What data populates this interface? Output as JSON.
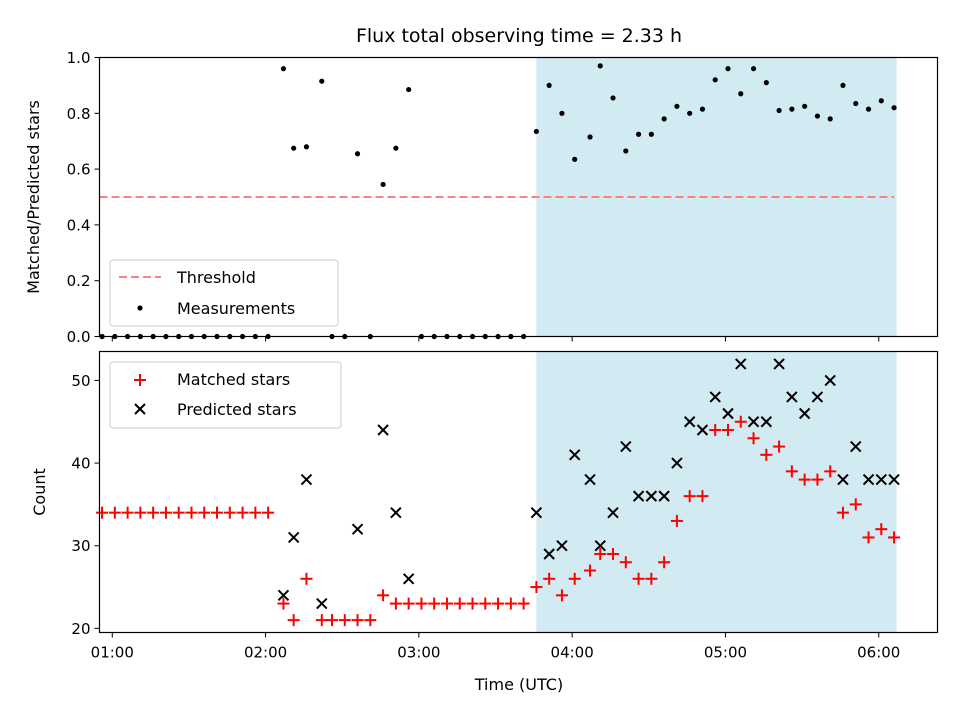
{
  "chart_data": {
    "type": "scatter",
    "title": "Flux total observing time = 2.33 h",
    "xlabel": "Time (UTC)",
    "x_unit": "time of day (UTC)",
    "xlim": [
      "00:55",
      "06:23"
    ],
    "xticks": [
      "01:00",
      "02:00",
      "03:00",
      "04:00",
      "05:00",
      "06:00"
    ],
    "highlight_span": {
      "start": "03:46",
      "end": "06:07",
      "color": "#add8e6"
    },
    "panels": [
      {
        "ylabel": "Matched/Predicted stars",
        "ylim": [
          0,
          1.0
        ],
        "yticks": [
          "0.0",
          "0.2",
          "0.4",
          "0.6",
          "0.8",
          "1.0"
        ],
        "legend_position": "lower left",
        "threshold": {
          "name": "Threshold",
          "value": 0.5,
          "color": "#ff7f7f",
          "x_start": "00:55",
          "x_end": "06:06"
        },
        "series": [
          {
            "name": "Measurements",
            "marker": "dot",
            "color": "#000000",
            "x": [
              "00:56",
              "01:01",
              "01:06",
              "01:11",
              "01:16",
              "01:21",
              "01:26",
              "01:31",
              "01:36",
              "01:41",
              "01:46",
              "01:51",
              "01:56",
              "02:01",
              "02:07",
              "02:11",
              "02:16",
              "02:22",
              "02:26",
              "02:31",
              "02:36",
              "02:41",
              "02:46",
              "02:51",
              "02:56",
              "03:01",
              "03:06",
              "03:11",
              "03:16",
              "03:21",
              "03:26",
              "03:31",
              "03:36",
              "03:41",
              "03:46",
              "03:51",
              "03:56",
              "04:01",
              "04:07",
              "04:11",
              "04:16",
              "04:21",
              "04:26",
              "04:31",
              "04:36",
              "04:41",
              "04:46",
              "04:51",
              "04:56",
              "05:01",
              "05:06",
              "05:11",
              "05:16",
              "05:21",
              "05:26",
              "05:31",
              "05:36",
              "05:41",
              "05:46",
              "05:51",
              "05:56",
              "06:01",
              "06:06"
            ],
            "y": [
              0,
              0,
              0,
              0,
              0,
              0,
              0,
              0,
              0,
              0,
              0,
              0,
              0,
              0,
              0.96,
              0.675,
              0.68,
              0.915,
              0,
              0,
              0.655,
              0,
              0.545,
              0.675,
              0.885,
              0,
              0,
              0,
              0,
              0,
              0,
              0,
              0,
              0,
              0.735,
              0.9,
              0.8,
              0.635,
              0.715,
              0.97,
              0.855,
              0.665,
              0.725,
              0.725,
              0.78,
              0.825,
              0.8,
              0.815,
              0.92,
              0.96,
              0.87,
              0.96,
              0.91,
              0.81,
              0.815,
              0.825,
              0.79,
              0.78,
              0.9,
              0.835,
              0.815,
              0.845,
              0.82
            ]
          }
        ]
      },
      {
        "ylabel": "Count",
        "ylim": [
          19.5,
          53.5
        ],
        "yticks": [
          "20",
          "30",
          "40",
          "50"
        ],
        "legend_position": "upper left",
        "series": [
          {
            "name": "Matched stars",
            "marker": "plus",
            "color": "#ff0000",
            "x": [
              "00:56",
              "01:01",
              "01:06",
              "01:11",
              "01:16",
              "01:21",
              "01:26",
              "01:31",
              "01:36",
              "01:41",
              "01:46",
              "01:51",
              "01:56",
              "02:01",
              "02:07",
              "02:11",
              "02:16",
              "02:22",
              "02:26",
              "02:31",
              "02:36",
              "02:41",
              "02:46",
              "02:51",
              "02:56",
              "03:01",
              "03:06",
              "03:11",
              "03:16",
              "03:21",
              "03:26",
              "03:31",
              "03:36",
              "03:41",
              "03:46",
              "03:51",
              "03:56",
              "04:01",
              "04:07",
              "04:11",
              "04:16",
              "04:21",
              "04:26",
              "04:31",
              "04:36",
              "04:41",
              "04:46",
              "04:51",
              "04:56",
              "05:01",
              "05:06",
              "05:11",
              "05:16",
              "05:21",
              "05:26",
              "05:31",
              "05:36",
              "05:41",
              "05:46",
              "05:51",
              "05:56",
              "06:01",
              "06:06"
            ],
            "y": [
              34,
              34,
              34,
              34,
              34,
              34,
              34,
              34,
              34,
              34,
              34,
              34,
              34,
              34,
              23,
              21,
              26,
              21,
              21,
              21,
              21,
              21,
              24,
              23,
              23,
              23,
              23,
              23,
              23,
              23,
              23,
              23,
              23,
              23,
              25,
              26,
              24,
              26,
              27,
              29,
              29,
              28,
              26,
              26,
              28,
              33,
              36,
              36,
              44,
              44,
              45,
              43,
              41,
              42,
              39,
              38,
              38,
              39,
              34,
              35,
              31,
              32,
              31
            ]
          },
          {
            "name": "Predicted stars",
            "marker": "x",
            "color": "#000000",
            "x": [
              "02:07",
              "02:11",
              "02:16",
              "02:22",
              "02:36",
              "02:46",
              "02:51",
              "02:56",
              "03:46",
              "03:51",
              "03:56",
              "04:01",
              "04:07",
              "04:11",
              "04:16",
              "04:21",
              "04:26",
              "04:31",
              "04:36",
              "04:41",
              "04:46",
              "04:51",
              "04:56",
              "05:01",
              "05:06",
              "05:11",
              "05:16",
              "05:21",
              "05:26",
              "05:31",
              "05:36",
              "05:41",
              "05:46",
              "05:51",
              "05:56",
              "06:01",
              "06:06"
            ],
            "y": [
              24,
              31,
              38,
              23,
              32,
              44,
              34,
              26,
              34,
              29,
              30,
              41,
              38,
              30,
              34,
              42,
              36,
              36,
              36,
              40,
              45,
              44,
              48,
              46,
              52,
              45,
              45,
              52,
              48,
              46,
              48,
              50,
              38,
              42,
              38,
              38,
              38
            ]
          }
        ]
      }
    ]
  }
}
